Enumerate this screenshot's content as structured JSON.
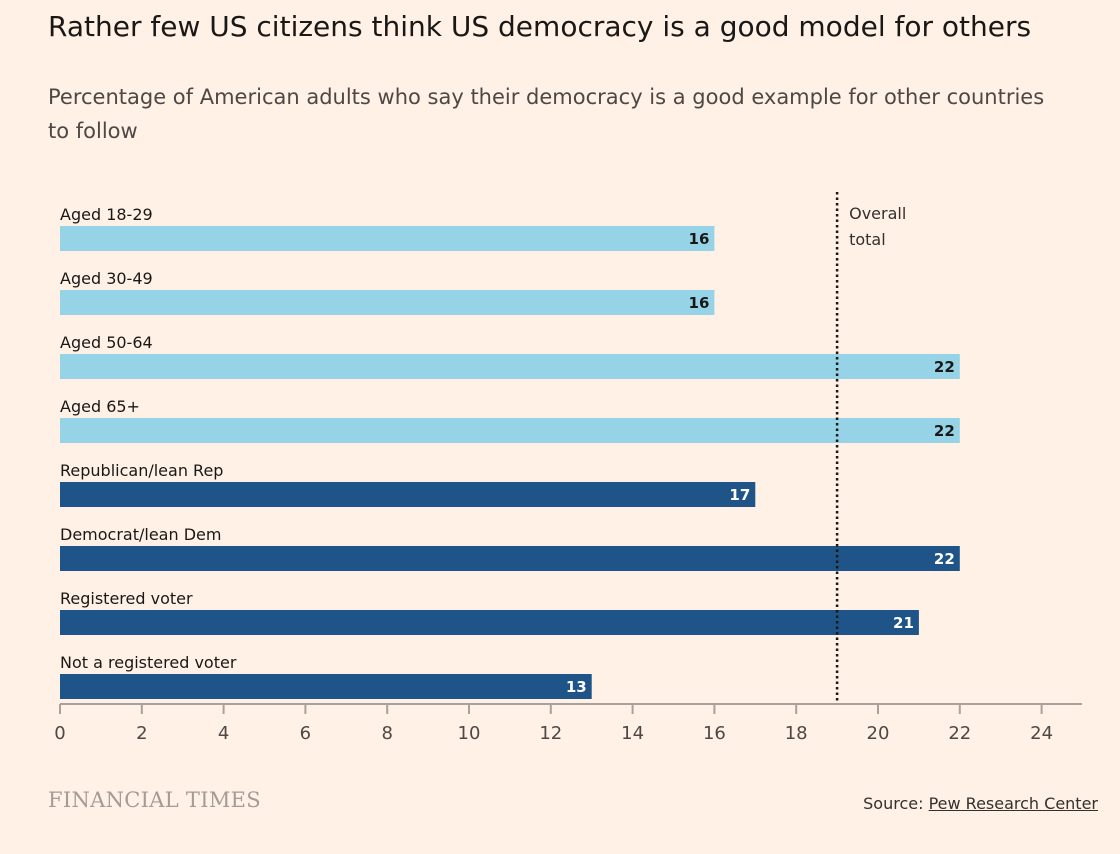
{
  "title": "Rather few US citizens think US democracy is a good model for others",
  "subtitle": "Percentage of American adults who say their democracy is a good example for other countries to follow",
  "colors": {
    "background": "#fff1e5",
    "age_bar": "#96d3e6",
    "other_bar": "#1f5489",
    "axis": "#a9a19a"
  },
  "chart_data": {
    "type": "bar",
    "orientation": "horizontal",
    "categories": [
      "Aged 18-29",
      "Aged 30-49",
      "Aged 50-64",
      "Aged 65+",
      "Republican/lean Rep",
      "Democrat/lean Dem",
      "Registered voter",
      "Not a registered voter"
    ],
    "values": [
      16,
      16,
      22,
      22,
      17,
      22,
      21,
      13
    ],
    "bar_groups": [
      "age",
      "age",
      "age",
      "age",
      "other",
      "other",
      "other",
      "other"
    ],
    "xlim": [
      0,
      25
    ],
    "xticks": [
      0,
      2,
      4,
      6,
      8,
      10,
      12,
      14,
      16,
      18,
      20,
      22,
      24
    ],
    "reference_line": {
      "value": 19,
      "label_lines": [
        "Overall",
        "total"
      ],
      "style": "dotted"
    },
    "grid": false,
    "legend": "none"
  },
  "footer": {
    "brand": "FINANCIAL TIMES",
    "source_prefix": "Source: ",
    "source_link": "Pew Research Center"
  }
}
